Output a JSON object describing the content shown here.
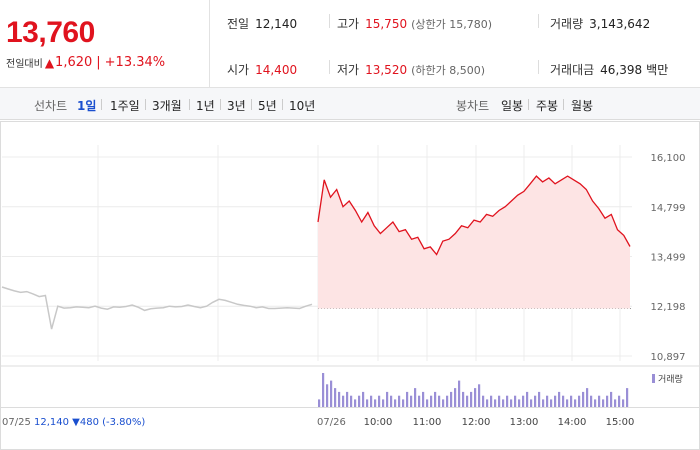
{
  "quote": {
    "price": "13,760",
    "change_label": "전일대비",
    "change_symbol": "▲",
    "change": "1,620",
    "change_pct": "+13.34%"
  },
  "stats": {
    "prev_close": {
      "label": "전일",
      "value": "12,140"
    },
    "high": {
      "label": "고가",
      "value": "15,750",
      "sub": "(상한가 15,780)"
    },
    "volume": {
      "label": "거래량",
      "value": "3,143,642"
    },
    "open": {
      "label": "시가",
      "value": "14,400"
    },
    "low": {
      "label": "저가",
      "value": "13,520",
      "sub": "(하한가 8,500)"
    },
    "amount": {
      "label": "거래대금",
      "value": "46,398",
      "unit": "백만"
    }
  },
  "tabs": {
    "line_label": "선차트",
    "line_tabs": [
      "1일",
      "1주일",
      "3개월",
      "1년",
      "3년",
      "5년",
      "10년"
    ],
    "line_active": "1일",
    "candle_label": "봉차트",
    "candle_tabs": [
      "일봉",
      "주봉",
      "월봉"
    ]
  },
  "colors": {
    "up": "#e0131e",
    "down": "#1a4fcf",
    "prev_line": "#c8c8c8",
    "fill": "#fde4e4",
    "volume": "#9a8fd6"
  },
  "chart_data": {
    "type": "area",
    "ylim": [
      10897,
      16100
    ],
    "yticks": [
      "16,100",
      "14,799",
      "13,499",
      "12,198",
      "10,897"
    ],
    "baseline": 12140,
    "prev_day_label": "07/25",
    "prev_day_info": "12,140 ▼480 (-3.80%)",
    "day_label": "07/26",
    "time_labels": [
      "10:00",
      "11:00",
      "12:00",
      "13:00",
      "14:00",
      "15:00"
    ],
    "volume_legend": "거래량",
    "prev_series": {
      "x": [
        0,
        2,
        4,
        6,
        8,
        10,
        12,
        14,
        16,
        18,
        20,
        22,
        24,
        26,
        28,
        30,
        32,
        34,
        36,
        38,
        40,
        42,
        44,
        46,
        48,
        50,
        52,
        54,
        56,
        58,
        60,
        62,
        64,
        66,
        68,
        70,
        72,
        74,
        76,
        78,
        80,
        82,
        84,
        86,
        88,
        90,
        92,
        94,
        96,
        98,
        100
      ],
      "y": [
        12700,
        12650,
        12600,
        12560,
        12580,
        12520,
        12450,
        12480,
        11600,
        12200,
        12150,
        12160,
        12180,
        12170,
        12160,
        12200,
        12150,
        12120,
        12180,
        12170,
        12190,
        12230,
        12170,
        12090,
        12130,
        12150,
        12160,
        12200,
        12180,
        12190,
        12230,
        12190,
        12160,
        12200,
        12300,
        12380,
        12350,
        12300,
        12250,
        12220,
        12200,
        12160,
        12180,
        12140,
        12140,
        12150,
        12160,
        12150,
        12140,
        12200,
        12250
      ]
    },
    "day_series": {
      "x": [
        0,
        2,
        4,
        6,
        8,
        10,
        12,
        14,
        16,
        18,
        20,
        22,
        24,
        26,
        28,
        30,
        32,
        34,
        36,
        38,
        40,
        42,
        44,
        46,
        48,
        50,
        52,
        54,
        56,
        58,
        60,
        62,
        64,
        66,
        68,
        70,
        72,
        74,
        76,
        78,
        80,
        82,
        84,
        86,
        88,
        90,
        92,
        94,
        96,
        98,
        100
      ],
      "y": [
        14400,
        15500,
        15050,
        15250,
        14800,
        14950,
        14700,
        14400,
        14650,
        14300,
        14100,
        14250,
        14400,
        14150,
        14200,
        13950,
        14000,
        13700,
        13750,
        13550,
        13900,
        13950,
        14100,
        14300,
        14250,
        14450,
        14400,
        14600,
        14550,
        14700,
        14800,
        14950,
        15100,
        15200,
        15400,
        15600,
        15450,
        15550,
        15400,
        15500,
        15600,
        15500,
        15400,
        15250,
        14950,
        14750,
        14500,
        14600,
        14200,
        14050,
        13760
      ]
    },
    "volume": [
      2,
      9,
      6,
      7,
      5,
      4,
      3,
      4,
      3,
      2,
      3,
      4,
      2,
      3,
      2,
      3,
      2,
      4,
      3,
      2,
      3,
      2,
      4,
      3,
      5,
      3,
      4,
      2,
      3,
      4,
      3,
      2,
      3,
      4,
      5,
      7,
      4,
      3,
      4,
      5,
      6,
      3,
      2,
      3,
      2,
      3,
      2,
      3,
      2,
      3,
      2,
      3,
      4,
      2,
      3,
      4,
      2,
      3,
      2,
      3,
      4,
      3,
      2,
      3,
      2,
      3,
      4,
      5,
      3,
      2,
      3,
      2,
      3,
      4,
      2,
      3,
      2,
      5
    ]
  }
}
